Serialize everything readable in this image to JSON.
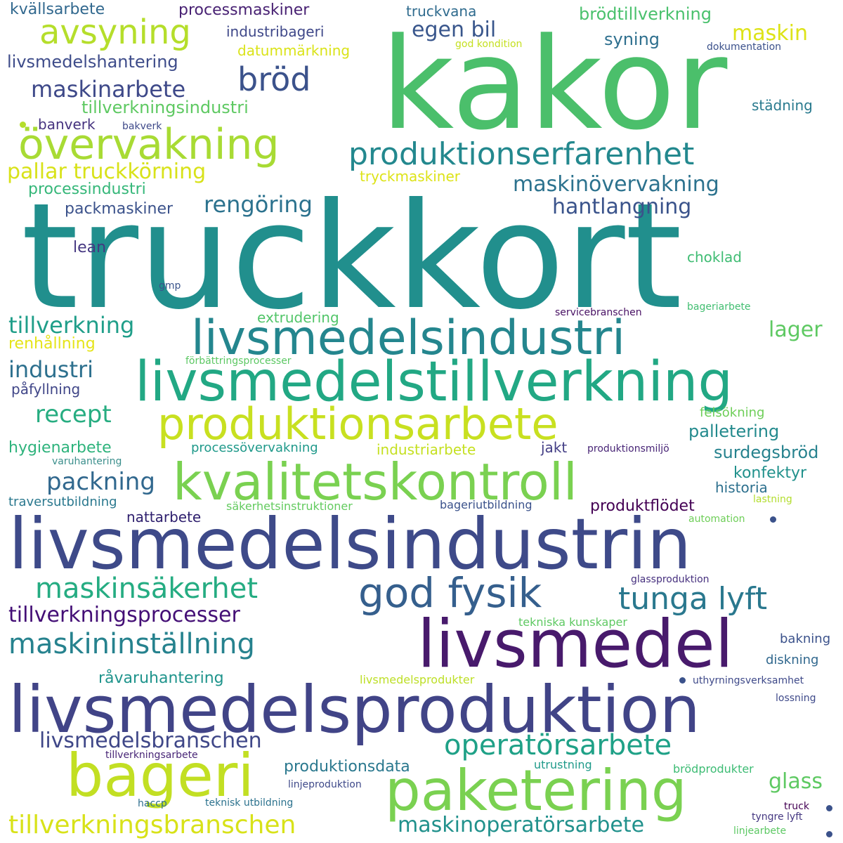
{
  "words": [
    {
      "text": "kakor",
      "color": "#4bbf6b"
    },
    {
      "text": "truckkort",
      "color": "#218f8d"
    },
    {
      "text": "livsmedelsindustrin",
      "color": "#3e4a89"
    },
    {
      "text": "livsmedelsproduktion",
      "color": "#414487"
    },
    {
      "text": "livsmedelstillverkning",
      "color": "#22a884"
    },
    {
      "text": "livsmedelsindustri",
      "color": "#24868e"
    },
    {
      "text": "kvalitetskontroll",
      "color": "#7ad151"
    },
    {
      "text": "produktionsarbete",
      "color": "#c8e020"
    },
    {
      "text": "livsmedel",
      "color": "#481a6c"
    },
    {
      "text": "paketering",
      "color": "#7ad151"
    },
    {
      "text": "bageri",
      "color": "#c2df23"
    },
    {
      "text": "övervakning",
      "color": "#a8db34"
    },
    {
      "text": "produktionserfarenhet",
      "color": "#23888e"
    },
    {
      "text": "god fysik",
      "color": "#355f8d"
    },
    {
      "text": "avsyning",
      "color": "#b5de2b"
    },
    {
      "text": "bröd",
      "color": "#3b528b"
    },
    {
      "text": "tunga lyft",
      "color": "#2a788e"
    },
    {
      "text": "maskinsäkerhet",
      "color": "#25ac82"
    },
    {
      "text": "maskininställning",
      "color": "#26828e"
    },
    {
      "text": "operatörsarbete",
      "color": "#1fa187"
    },
    {
      "text": "tillverkningsbranschen",
      "color": "#d8e219"
    },
    {
      "text": "maskinarbete",
      "color": "#3e4989"
    },
    {
      "text": "tillverkningsprocesser",
      "color": "#440f76"
    },
    {
      "text": "livsmedelsbranschen",
      "color": "#3f4788"
    },
    {
      "text": "maskinoperatörsarbete",
      "color": "#21918c"
    },
    {
      "text": "pallar truckkörning",
      "color": "#d8e219"
    },
    {
      "text": "maskinövervakning",
      "color": "#2c728e"
    },
    {
      "text": "hantlangning",
      "color": "#3a538b"
    },
    {
      "text": "rengöring",
      "color": "#2c728e"
    },
    {
      "text": "tillverkning",
      "color": "#1f9e89"
    },
    {
      "text": "industri",
      "color": "#2d708e"
    },
    {
      "text": "recept",
      "color": "#27ad81"
    },
    {
      "text": "packning",
      "color": "#31688e"
    },
    {
      "text": "egen bil",
      "color": "#39568c"
    },
    {
      "text": "maskin",
      "color": "#dde318"
    },
    {
      "text": "glass",
      "color": "#5ec962"
    },
    {
      "text": "lager",
      "color": "#5ec962"
    },
    {
      "text": "tillverkningsindustri",
      "color": "#5ec962"
    },
    {
      "text": "livsmedelshantering",
      "color": "#3e4c8a"
    },
    {
      "text": "processmaskiner",
      "color": "#482173"
    },
    {
      "text": "kvällsarbete",
      "color": "#31688e"
    },
    {
      "text": "industribageri",
      "color": "#3f4889"
    },
    {
      "text": "truckvana",
      "color": "#2f6b8e"
    },
    {
      "text": "brödtillverkning",
      "color": "#4ac16d"
    },
    {
      "text": "datummärkning",
      "color": "#dae319"
    },
    {
      "text": "syning",
      "color": "#2e6f8e"
    },
    {
      "text": "god kondition",
      "color": "#c5e021"
    },
    {
      "text": "dokumentation",
      "color": "#3b518b"
    },
    {
      "text": "städning",
      "color": "#297a8e"
    },
    {
      "text": "banverk",
      "color": "#46337f"
    },
    {
      "text": "bakverk",
      "color": "#3e4989"
    },
    {
      "text": "tryckmaskiner",
      "color": "#dde318"
    },
    {
      "text": "processindustri",
      "color": "#35b779"
    },
    {
      "text": "packmaskiner",
      "color": "#3b528b"
    },
    {
      "text": "lean",
      "color": "#453781"
    },
    {
      "text": "choklad",
      "color": "#3fbc73"
    },
    {
      "text": "gmp",
      "color": "#3a548c"
    },
    {
      "text": "extrudering",
      "color": "#52c569"
    },
    {
      "text": "servicebranschen",
      "color": "#471063"
    },
    {
      "text": "bageriarbete",
      "color": "#42be71"
    },
    {
      "text": "renhållning",
      "color": "#e5e419"
    },
    {
      "text": "förbättringsprocesser",
      "color": "#5cc863"
    },
    {
      "text": "påfyllning",
      "color": "#404688"
    },
    {
      "text": "felsökning",
      "color": "#6ece58"
    },
    {
      "text": "palletering",
      "color": "#238a8d"
    },
    {
      "text": "hygienarbete",
      "color": "#2eb37c"
    },
    {
      "text": "processövervakning",
      "color": "#1f998a"
    },
    {
      "text": "industriarbete",
      "color": "#c5e021"
    },
    {
      "text": "jakt",
      "color": "#433e85"
    },
    {
      "text": "produktionsmiljö",
      "color": "#482576"
    },
    {
      "text": "surdegsbröd",
      "color": "#26828e"
    },
    {
      "text": "konfektyr",
      "color": "#21918c"
    },
    {
      "text": "varuhantering",
      "color": "#3b8f8c"
    },
    {
      "text": "historia",
      "color": "#2d708e"
    },
    {
      "text": "traversutbildning",
      "color": "#2a788e"
    },
    {
      "text": "säkerhetsinstruktioner",
      "color": "#63cb5f"
    },
    {
      "text": "bageriutbildning",
      "color": "#3b528b"
    },
    {
      "text": "produktflödet",
      "color": "#440154"
    },
    {
      "text": "lastning",
      "color": "#b2dd2d"
    },
    {
      "text": "nattarbete",
      "color": "#2d1e6d"
    },
    {
      "text": "automation",
      "color": "#6ece58"
    },
    {
      "text": "glassproduktion",
      "color": "#46307e"
    },
    {
      "text": "tekniska kunskaper",
      "color": "#5ec962"
    },
    {
      "text": "bakning",
      "color": "#3b528b"
    },
    {
      "text": "diskning",
      "color": "#31688e"
    },
    {
      "text": "råvaruhantering",
      "color": "#1f948c"
    },
    {
      "text": "livsmedelsprodukter",
      "color": "#bddf26"
    },
    {
      "text": "uthyrningsverksamhet",
      "color": "#3e4989"
    },
    {
      "text": "lossning",
      "color": "#3e4989"
    },
    {
      "text": "produktionsdata",
      "color": "#2a788e"
    },
    {
      "text": "tillverkningsarbete",
      "color": "#482677"
    },
    {
      "text": "utrustning",
      "color": "#1f9a8a"
    },
    {
      "text": "brödprodukter",
      "color": "#3dbc74"
    },
    {
      "text": "linjeproduktion",
      "color": "#3e4989"
    },
    {
      "text": "haccp",
      "color": "#2e6e8e"
    },
    {
      "text": "teknisk utbildning",
      "color": "#2c728e"
    },
    {
      "text": "truck",
      "color": "#440154"
    },
    {
      "text": "tyngre lyft",
      "color": "#453882"
    },
    {
      "text": "linjearbete",
      "color": "#5cc863"
    }
  ],
  "dots": [
    {
      "name": "dot-1",
      "color": "#b5de2b"
    },
    {
      "name": "dot-2",
      "color": "#3b528b"
    },
    {
      "name": "dot-3",
      "color": "#3b528b"
    },
    {
      "name": "dot-4",
      "color": "#3b528b"
    },
    {
      "name": "dot-5",
      "color": "#3b528b"
    }
  ]
}
